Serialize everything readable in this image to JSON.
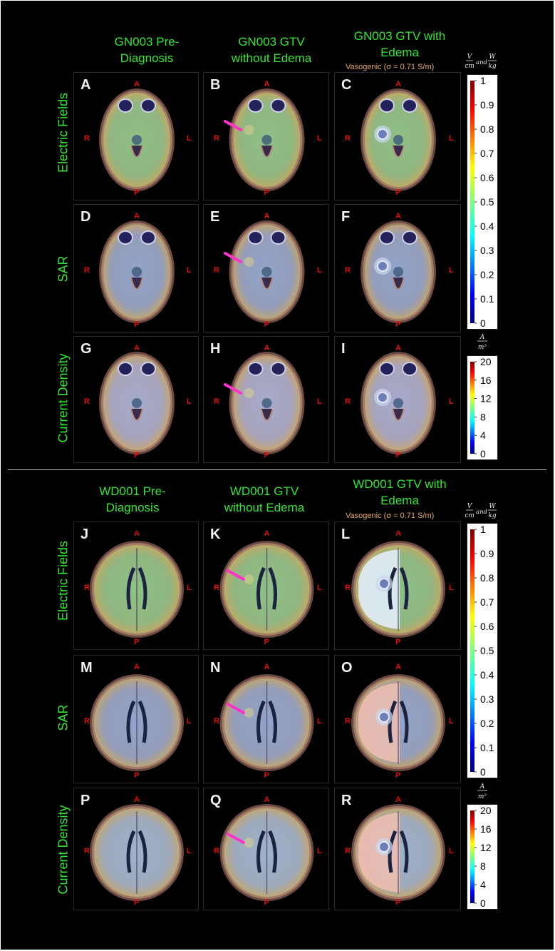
{
  "sections": [
    {
      "id": "gn003",
      "columns": [
        {
          "title": "GN003 Pre-\nDiagnosis"
        },
        {
          "title": "GN003 GTV\nwithout Edema"
        },
        {
          "title": "GN003 GTV with\nEdema",
          "subtitle": "Vasogenic (σ = 0.71 S/m)"
        }
      ],
      "rows": [
        {
          "label": "Electric Fields",
          "panels": [
            "A",
            "B",
            "C"
          ]
        },
        {
          "label": "SAR",
          "panels": [
            "D",
            "E",
            "F"
          ]
        },
        {
          "label": "Current Density",
          "panels": [
            "G",
            "H",
            "I"
          ]
        }
      ]
    },
    {
      "id": "wd001",
      "columns": [
        {
          "title": "WD001 Pre-\nDiagnosis"
        },
        {
          "title": "WD001 GTV\nwithout Edema"
        },
        {
          "title": "WD001 GTV with\nEdema",
          "subtitle": "Vasogenic (σ = 0.71 S/m)"
        }
      ],
      "rows": [
        {
          "label": "Electric Fields",
          "panels": [
            "J",
            "K",
            "L"
          ]
        },
        {
          "label": "SAR",
          "panels": [
            "M",
            "N",
            "O"
          ]
        },
        {
          "label": "Current Density",
          "panels": [
            "P",
            "Q",
            "R"
          ]
        }
      ]
    }
  ],
  "orientation": {
    "anterior": "A",
    "posterior": "P",
    "right": "R",
    "left": "L"
  },
  "colorbars": {
    "field_sar": {
      "unit_top": "V/cm and W/kg",
      "ticks": [
        "1",
        "0.9",
        "0.8",
        "0.7",
        "0.6",
        "0.5",
        "0.4",
        "0.3",
        "0.2",
        "0.1",
        "0"
      ]
    },
    "current_density": {
      "unit_top": "A/m²",
      "ticks": [
        "20",
        "16",
        "12",
        "8",
        "4",
        "0"
      ]
    }
  },
  "colors": {
    "title_green": "#33e633",
    "orientation_red": "#e01010",
    "vasogenic_orange": "#e8a86a",
    "arrow_magenta": "#ff33cc",
    "background": "#000000"
  }
}
